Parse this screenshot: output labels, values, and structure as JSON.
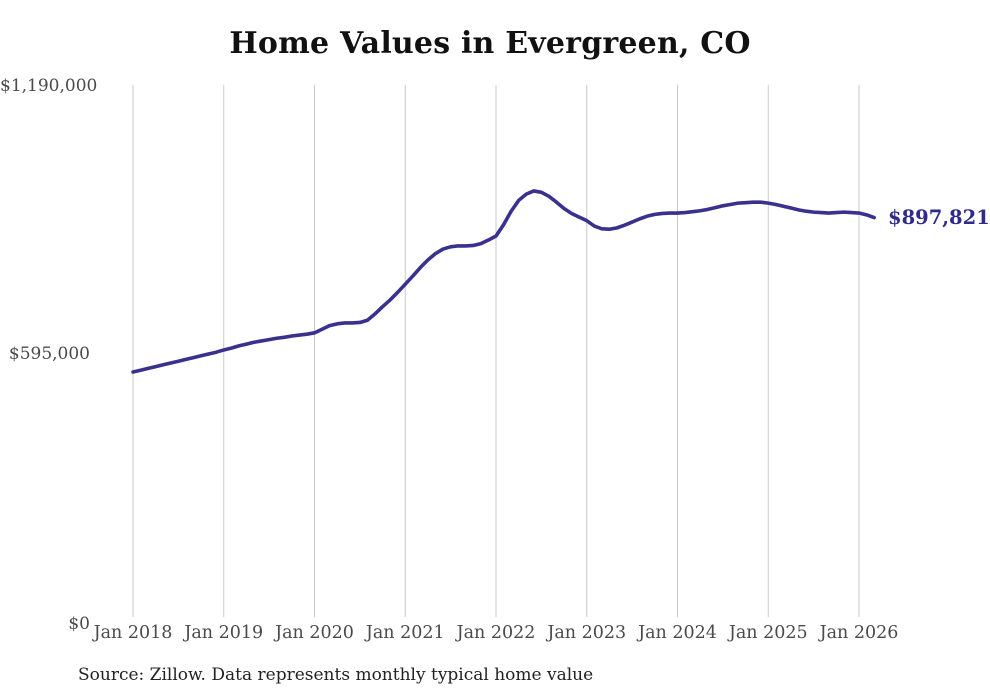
{
  "title": "Home Values in Evergreen, CO",
  "source_note": "Source: Zillow. Data represents monthly typical home value",
  "end_label": "$897,821",
  "colors": {
    "line": "#39318e",
    "end_label": "#2f2b8d",
    "grid": "#c9c9c9",
    "title_text": "#111111",
    "axis_text": "#4a4a4a",
    "background": "#ffffff"
  },
  "chart_data": {
    "type": "line",
    "title": "Home Values in Evergreen, CO",
    "xlabel": "",
    "ylabel": "",
    "grid": "vertical-only",
    "legend": "none",
    "ylim": [
      0,
      1190000
    ],
    "y_tick_values": [
      0,
      595000,
      1190000
    ],
    "y_tick_labels": [
      "$0",
      "$595,000",
      "$1,190,000"
    ],
    "x_tick_labels": [
      "Jan 2018",
      "Jan 2019",
      "Jan 2020",
      "Jan 2021",
      "Jan 2022",
      "Jan 2023",
      "Jan 2024",
      "Jan 2025",
      "Jan 2026"
    ],
    "final_value": 897821,
    "final_value_label": "$897,821",
    "series": [
      {
        "name": "Monthly typical home value",
        "x": [
          "2018-01",
          "2018-02",
          "2018-03",
          "2018-04",
          "2018-05",
          "2018-06",
          "2018-07",
          "2018-08",
          "2018-09",
          "2018-10",
          "2018-11",
          "2018-12",
          "2019-01",
          "2019-02",
          "2019-03",
          "2019-04",
          "2019-05",
          "2019-06",
          "2019-07",
          "2019-08",
          "2019-09",
          "2019-10",
          "2019-11",
          "2019-12",
          "2020-01",
          "2020-02",
          "2020-03",
          "2020-04",
          "2020-05",
          "2020-06",
          "2020-07",
          "2020-08",
          "2020-09",
          "2020-10",
          "2020-11",
          "2020-12",
          "2021-01",
          "2021-02",
          "2021-03",
          "2021-04",
          "2021-05",
          "2021-06",
          "2021-07",
          "2021-08",
          "2021-09",
          "2021-10",
          "2021-11",
          "2021-12",
          "2022-01",
          "2022-02",
          "2022-03",
          "2022-04",
          "2022-05",
          "2022-06",
          "2022-07",
          "2022-08",
          "2022-09",
          "2022-10",
          "2022-11",
          "2022-12",
          "2023-01",
          "2023-02",
          "2023-03",
          "2023-04",
          "2023-05",
          "2023-06",
          "2023-07",
          "2023-08",
          "2023-09",
          "2023-10",
          "2023-11",
          "2023-12",
          "2024-01",
          "2024-02",
          "2024-03",
          "2024-04",
          "2024-05",
          "2024-06",
          "2024-07",
          "2024-08",
          "2024-09",
          "2024-10",
          "2024-11",
          "2024-12",
          "2025-01",
          "2025-02",
          "2025-03",
          "2025-04",
          "2025-05",
          "2025-06",
          "2025-07",
          "2025-08",
          "2025-09",
          "2025-10",
          "2025-11",
          "2025-12",
          "2026-01",
          "2026-02",
          "2026-03"
        ],
        "values": [
          555000,
          559000,
          563000,
          567000,
          571000,
          575000,
          579000,
          583000,
          587000,
          591000,
          595000,
          599000,
          604000,
          608000,
          613000,
          617000,
          621000,
          624000,
          627000,
          630000,
          632000,
          635000,
          637000,
          639000,
          642000,
          650000,
          658000,
          662000,
          664000,
          664000,
          665000,
          670000,
          684000,
          700000,
          715000,
          732000,
          750000,
          768000,
          787000,
          804000,
          818000,
          828000,
          833000,
          835000,
          835000,
          836000,
          840000,
          848000,
          857000,
          882000,
          912000,
          936000,
          950000,
          957000,
          954000,
          945000,
          932000,
          918000,
          907000,
          899000,
          891000,
          879000,
          873000,
          872000,
          875000,
          881000,
          888000,
          895000,
          901000,
          905000,
          907000,
          908000,
          908000,
          909000,
          911000,
          913000,
          916000,
          920000,
          924000,
          927000,
          930000,
          931000,
          932000,
          932000,
          930000,
          927000,
          923000,
          919000,
          915000,
          912000,
          910000,
          909000,
          908000,
          909000,
          910000,
          909000,
          908000,
          904000,
          897821
        ]
      }
    ]
  }
}
